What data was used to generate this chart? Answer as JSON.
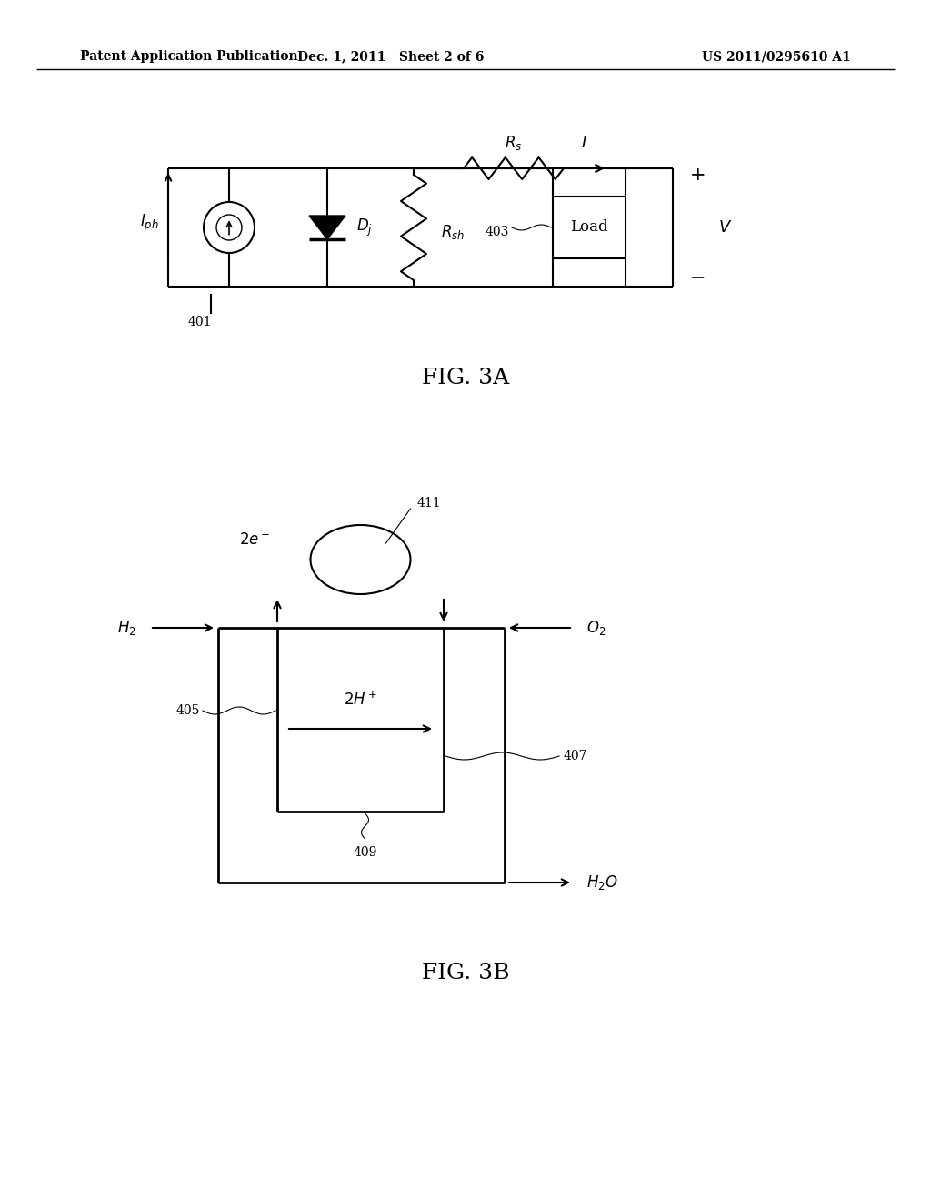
{
  "bg_color": "#ffffff",
  "line_color": "#000000",
  "header_left": "Patent Application Publication",
  "header_center": "Dec. 1, 2011   Sheet 2 of 6",
  "header_right": "US 2011/0295610 A1",
  "fig3a_label": "FIG. 3A",
  "fig3b_label": "FIG. 3B"
}
